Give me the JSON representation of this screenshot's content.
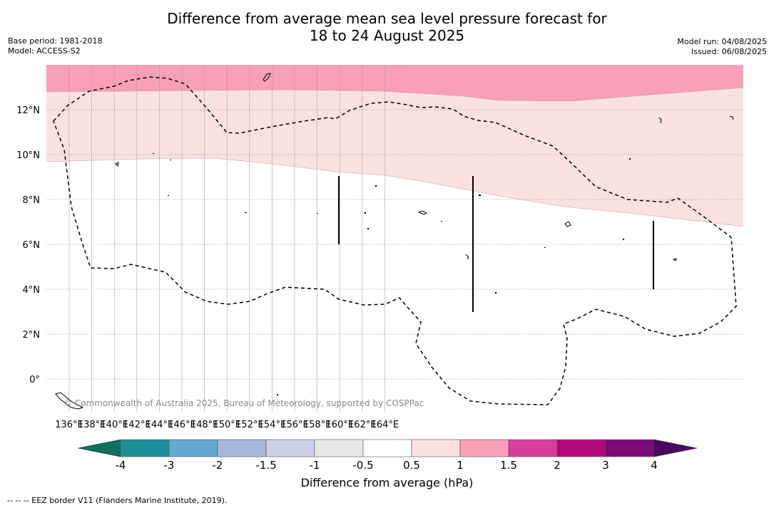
{
  "title_line1": "Difference from average mean sea level pressure forecast for",
  "title_line2": "18 to 24 August 2025",
  "meta_left": [
    "Base period: 1981-2018",
    "Model: ACCESS-S2"
  ],
  "meta_right": [
    "Model run: 04/08/2025",
    "Issued: 06/08/2025"
  ],
  "copyright": "© Commonwealth of Australia 2025, Bureau of Meteorology, supported by COSPPac",
  "lat_labels": [
    "12°N",
    "10°N",
    "8°N",
    "6°N",
    "4°N",
    "2°N",
    "0°"
  ],
  "lon_labels": [
    "136°E",
    "138°E",
    "140°E",
    "142°E",
    "144°E",
    "146°E",
    "148°E",
    "150°E",
    "152°E",
    "154°E",
    "156°E",
    "158°E",
    "160°E",
    "162°E",
    "164°E"
  ],
  "colorbar": {
    "title": "Difference from average (hPa)",
    "tick_labels": [
      "-4",
      "-3",
      "-2",
      "-1.5",
      "-1",
      "-0.5",
      "0.5",
      "1",
      "1.5",
      "2",
      "3",
      "4"
    ],
    "colors": [
      "#1f8f97",
      "#65a9d2",
      "#a5b8da",
      "#cfd0e8",
      "#e8e8e8",
      "#ffffff",
      "#fde0e0",
      "#f8a0b7",
      "#d83e9c",
      "#b0087c",
      "#7c0a77"
    ],
    "under_color": "#116e62",
    "over_color": "#4a0861"
  },
  "legend_note": "-- -- -- EEZ border V11 (Flanders Marine Institute, 2019)."
}
